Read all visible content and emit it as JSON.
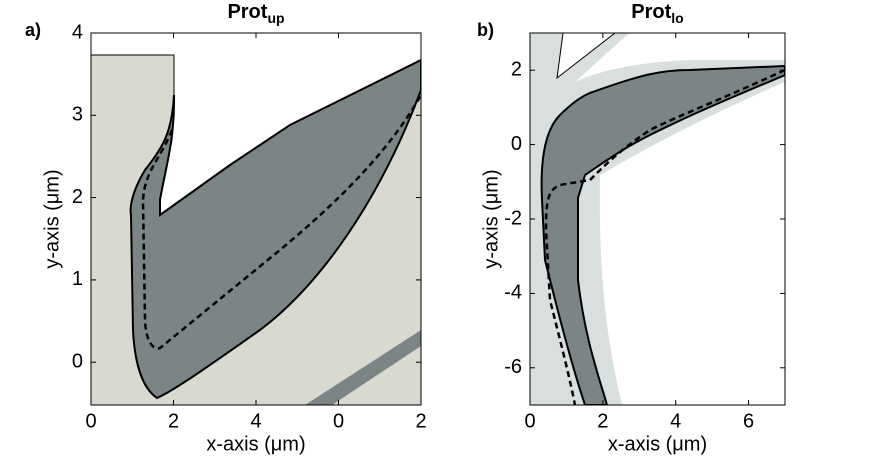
{
  "chart_data": [
    {
      "type": "region",
      "panel_label": "a)",
      "title": "Prot",
      "title_subscript": "up",
      "x_label": "x-axis (μm)",
      "y_label": "y-axis (μm)",
      "xlim": [
        0,
        8
      ],
      "ylim": [
        -0.52,
        4
      ],
      "xticks": [
        0,
        2,
        4,
        {
          "value": 6,
          "label": "0"
        },
        {
          "value": 8,
          "label": "2"
        }
      ],
      "yticks": [
        0,
        1,
        2,
        3,
        4
      ]
    },
    {
      "type": "region",
      "panel_label": "b)",
      "title": "Prot",
      "title_subscript": "lo",
      "x_label": "x-axis (μm)",
      "y_label": "y-axis (μm)",
      "xlim": [
        0,
        7
      ],
      "ylim": [
        -7,
        3
      ],
      "xticks": [
        0,
        2,
        4,
        6
      ],
      "yticks": [
        -6,
        -4,
        -2,
        0,
        2
      ]
    }
  ]
}
